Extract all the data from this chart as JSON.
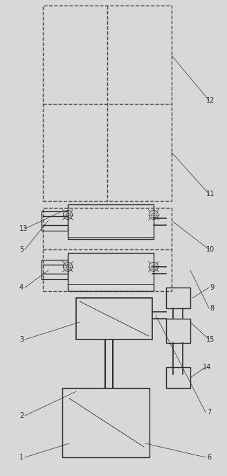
{
  "fig_width": 3.28,
  "fig_height": 6.87,
  "dpi": 100,
  "bg_color": "#d8d8d8",
  "line_color": "#2a2a2a",
  "dashed_color": "#444444"
}
